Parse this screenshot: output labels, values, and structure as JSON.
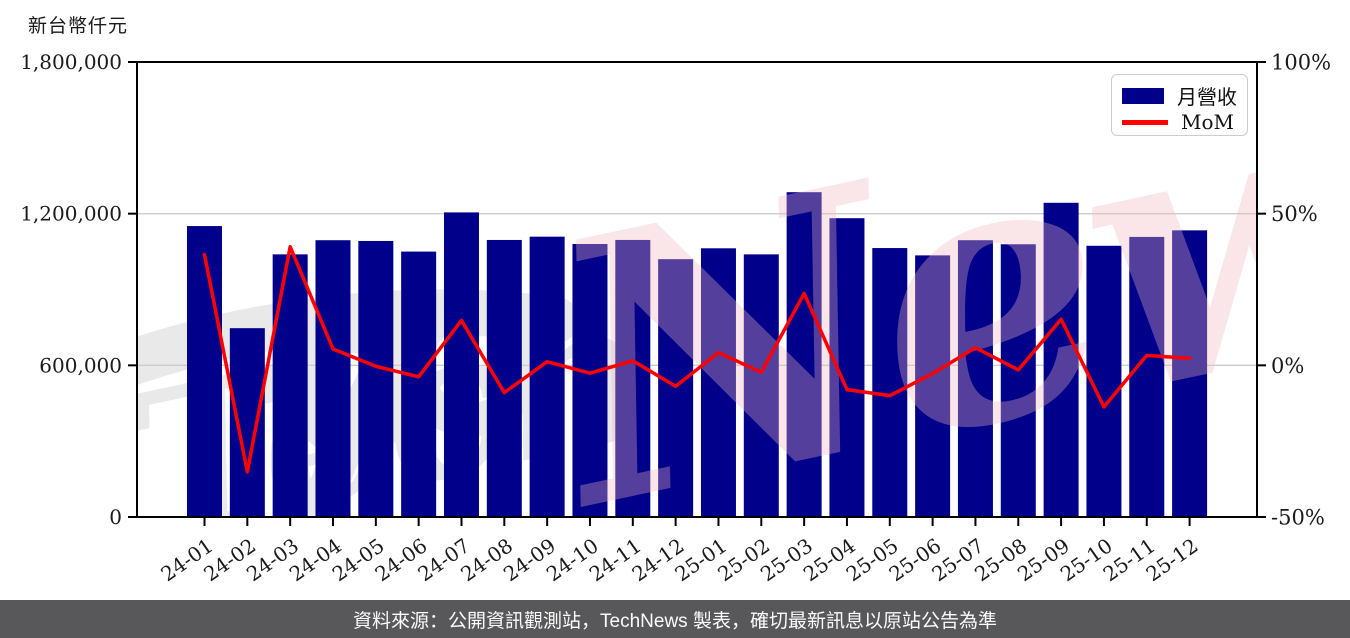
{
  "chart_data": {
    "type": "bar+line",
    "title": "",
    "categories": [
      "24-01",
      "24-02",
      "24-03",
      "24-04",
      "24-05",
      "24-06",
      "24-07",
      "24-08",
      "24-09",
      "24-10",
      "24-11",
      "24-12",
      "25-01",
      "25-02",
      "25-03",
      "25-04",
      "25-05",
      "25-06",
      "25-07",
      "25-08",
      "25-09",
      "25-10",
      "25-11",
      "25-12"
    ],
    "series": [
      {
        "name": "月營收",
        "type": "bar",
        "axis": "left",
        "color": "#00008b",
        "values": [
          1151000,
          747000,
          1039000,
          1095000,
          1092000,
          1050000,
          1205000,
          1096000,
          1109000,
          1080000,
          1096000,
          1020000,
          1063000,
          1039000,
          1285000,
          1182000,
          1064000,
          1035000,
          1095000,
          1079000,
          1243000,
          1073000,
          1108000,
          1134000
        ]
      },
      {
        "name": "MoM",
        "type": "line",
        "axis": "right",
        "color": "#ff0000",
        "unit": "%",
        "values": [
          36.5,
          -35.1,
          39.1,
          5.4,
          -0.3,
          -3.8,
          14.8,
          -9.0,
          1.2,
          -2.6,
          1.5,
          -6.9,
          4.2,
          -2.3,
          23.7,
          -8.0,
          -10.0,
          -2.7,
          5.8,
          -1.5,
          15.2,
          -13.7,
          3.3,
          2.3
        ]
      }
    ],
    "left_axis": {
      "title": "新台幣仟元",
      "range": [
        0,
        1800000
      ],
      "tick_values": [
        0,
        600000,
        1200000,
        1800000
      ],
      "tick_labels": [
        "0",
        "600,000",
        "1,200,000",
        "1,800,000"
      ],
      "grid_values": [
        600000,
        1200000
      ]
    },
    "right_axis": {
      "range": [
        -50,
        100
      ],
      "tick_values": [
        -50,
        0,
        50,
        100
      ],
      "tick_labels": [
        "-50%",
        "0%",
        "50%",
        "100%"
      ]
    },
    "x_axis": {
      "tick_label_rotation_deg": 35
    },
    "grid": "horizontal",
    "legend_position": "top-right"
  },
  "watermark": {
    "gray_text": "Tech",
    "pink_text": "News"
  },
  "footer": {
    "text": "資料來源：公開資訊觀測站，TechNews 製表，確切最新訊息以原站公告為準"
  },
  "colors": {
    "bar": "#00008b",
    "line": "#ff0000",
    "grid": "#cccccc",
    "axis": "#000000",
    "tick_text": "#1a1a1a",
    "footer_bg": "#58585a",
    "footer_text": "#fafafa",
    "watermark_gray": "#e9e9e9",
    "watermark_pink": "#f0b7bd",
    "legend_border": "#cccccc"
  }
}
